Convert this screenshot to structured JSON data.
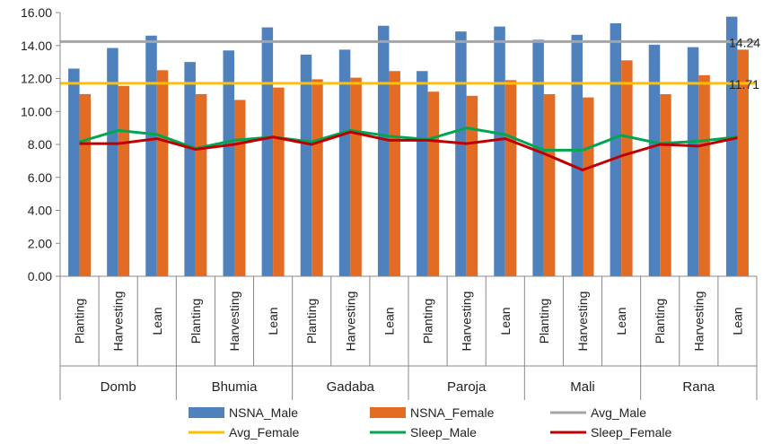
{
  "chart_data": {
    "type": "bar",
    "groups": [
      "Domb",
      "Bhumia",
      "Gadaba",
      "Paroja",
      "Mali",
      "Rana"
    ],
    "seasons": [
      "Planting",
      "Harvesting",
      "Lean"
    ],
    "categories": [
      "Domb Planting",
      "Domb Harvesting",
      "Domb Lean",
      "Bhumia Planting",
      "Bhumia Harvesting",
      "Bhumia Lean",
      "Gadaba Planting",
      "Gadaba Harvesting",
      "Gadaba Lean",
      "Paroja Planting",
      "Paroja Harvesting",
      "Paroja Lean",
      "Mali Planting",
      "Mali Harvesting",
      "Mali Lean",
      "Rana Planting",
      "Rana Harvesting",
      "Rana Lean"
    ],
    "series": [
      {
        "name": "NSNA_Male",
        "kind": "bar",
        "color": "#4f81bd",
        "values": [
          12.6,
          13.85,
          14.6,
          13.0,
          13.7,
          15.1,
          13.45,
          13.75,
          15.2,
          12.45,
          14.85,
          15.15,
          14.35,
          14.65,
          15.35,
          14.05,
          13.9,
          15.75
        ]
      },
      {
        "name": "NSNA_Female",
        "kind": "bar",
        "color": "#e36c25",
        "values": [
          11.05,
          11.55,
          12.5,
          11.05,
          10.7,
          11.45,
          11.95,
          12.05,
          12.45,
          11.2,
          10.95,
          11.9,
          11.05,
          10.85,
          13.1,
          11.05,
          12.2,
          13.75
        ]
      },
      {
        "name": "Avg_Male",
        "kind": "hline",
        "color": "#a5a5a5",
        "value": 14.24
      },
      {
        "name": "Avg_Female",
        "kind": "hline",
        "color": "#ffc000",
        "value": 11.71
      },
      {
        "name": "Sleep_Male",
        "kind": "line",
        "color": "#00a651",
        "values": [
          8.15,
          8.85,
          8.6,
          7.75,
          8.25,
          8.45,
          8.15,
          8.85,
          8.5,
          8.3,
          9.0,
          8.6,
          7.65,
          7.65,
          8.55,
          8.05,
          8.2,
          8.45
        ]
      },
      {
        "name": "Sleep_Female",
        "kind": "line",
        "color": "#c00000",
        "values": [
          8.05,
          8.05,
          8.35,
          7.7,
          8.0,
          8.45,
          8.0,
          8.75,
          8.25,
          8.25,
          8.05,
          8.35,
          7.45,
          6.45,
          7.3,
          8.0,
          7.9,
          8.4
        ]
      }
    ],
    "annotations": [
      "14.24",
      "11.71"
    ],
    "yticks": [
      "0.00",
      "2.00",
      "4.00",
      "6.00",
      "8.00",
      "10.00",
      "12.00",
      "14.00",
      "16.00"
    ],
    "ylim": [
      0,
      16
    ],
    "grid": false,
    "legend_position": "bottom",
    "title": "",
    "xlabel": "",
    "ylabel": ""
  }
}
